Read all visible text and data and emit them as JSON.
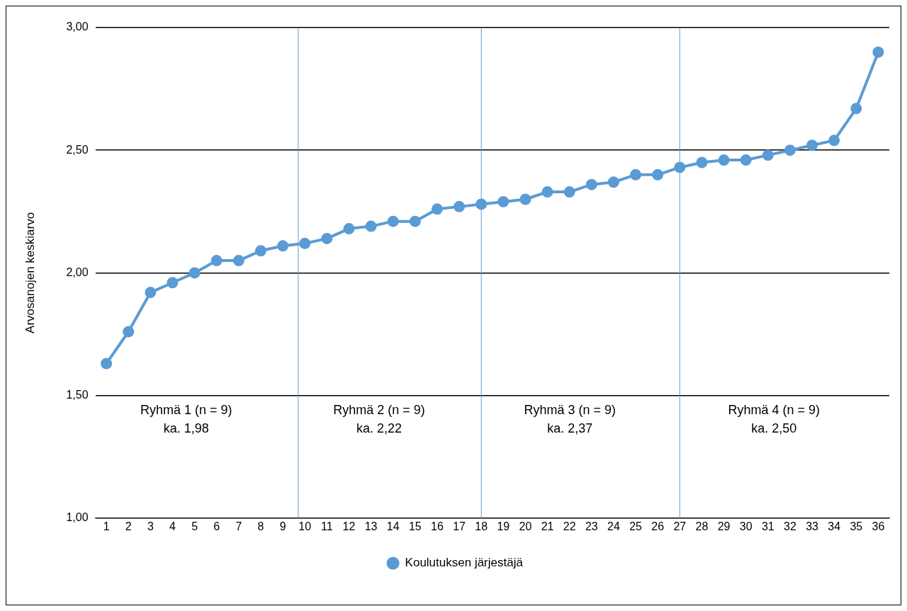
{
  "chart_data": {
    "type": "line",
    "ylabel": "Arvosanojen keskiarvo",
    "x": [
      1,
      2,
      3,
      4,
      5,
      6,
      7,
      8,
      9,
      10,
      11,
      12,
      13,
      14,
      15,
      16,
      17,
      18,
      19,
      20,
      21,
      22,
      23,
      24,
      25,
      26,
      27,
      28,
      29,
      30,
      31,
      32,
      33,
      34,
      35,
      36
    ],
    "xlim": [
      0.5,
      36.5
    ],
    "xticks": [
      1,
      2,
      3,
      4,
      5,
      6,
      7,
      8,
      9,
      10,
      11,
      12,
      13,
      14,
      15,
      16,
      17,
      18,
      19,
      20,
      21,
      22,
      23,
      24,
      25,
      26,
      27,
      28,
      29,
      30,
      31,
      32,
      33,
      34,
      35,
      36
    ],
    "ylim": [
      1,
      3
    ],
    "yticks": [
      {
        "value": 1,
        "label": "1,00"
      },
      {
        "value": 1.5,
        "label": "1,50"
      },
      {
        "value": 2,
        "label": "2,00"
      },
      {
        "value": 2.5,
        "label": "2,50"
      },
      {
        "value": 3,
        "label": "3,00"
      }
    ],
    "series": [
      {
        "name": "Koulutuksen järjestäjä",
        "color": "#5b9bd5",
        "values": [
          1.63,
          1.76,
          1.92,
          1.96,
          2.0,
          2.05,
          2.05,
          2.09,
          2.11,
          2.12,
          2.14,
          2.18,
          2.19,
          2.21,
          2.21,
          2.26,
          2.27,
          2.28,
          2.29,
          2.3,
          2.33,
          2.33,
          2.36,
          2.37,
          2.4,
          2.4,
          2.43,
          2.45,
          2.46,
          2.46,
          2.48,
          2.5,
          2.52,
          2.54,
          2.67,
          2.9
        ]
      }
    ],
    "ref_lines": [
      {
        "axis": "x",
        "value": 9.7,
        "color": "#5b9bd5"
      },
      {
        "axis": "x",
        "value": 18,
        "color": "#5b9bd5"
      },
      {
        "axis": "x",
        "value": 27,
        "color": "#5b9bd5"
      }
    ],
    "annotations": [
      "Ryhmä 1 (n = 9)\nka. 1,98",
      "Ryhmä 2 (n = 9)\nka. 2,22",
      "Ryhmä 3 (n = 9)\nka. 2,37",
      "Ryhmä 4 (n = 9)\nka. 2,50"
    ],
    "grid": "y",
    "legend": "bottom",
    "marker": "circle",
    "line_style": "solid"
  }
}
